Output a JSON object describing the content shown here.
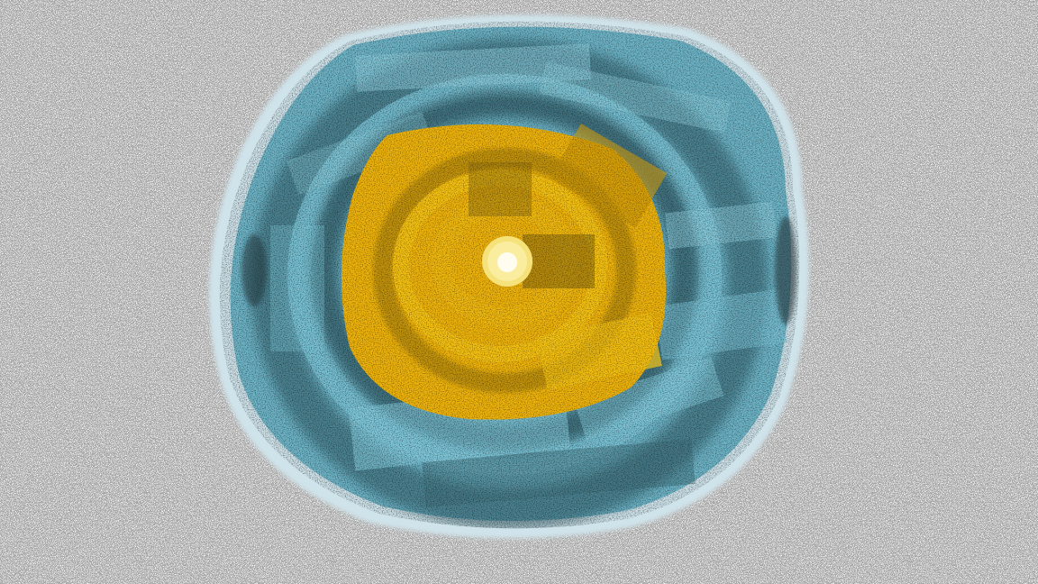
{
  "artwork": {
    "subject": "concentric-ring-painting",
    "palette": {
      "background": "#ffffff",
      "halo_outer": "#cfe3ea",
      "halo_inner": "#a9cfdb",
      "blue_light": "#7ec7da",
      "blue_mid": "#5aa3b8",
      "blue_dark": "#2b4e58",
      "shadow": "#17272b",
      "gold_light": "#f7c414",
      "gold_mid": "#e3ad07",
      "gold_dark": "#8a6a10",
      "core_ring": "#f6e27a",
      "core_center": "#fffdf0"
    }
  }
}
